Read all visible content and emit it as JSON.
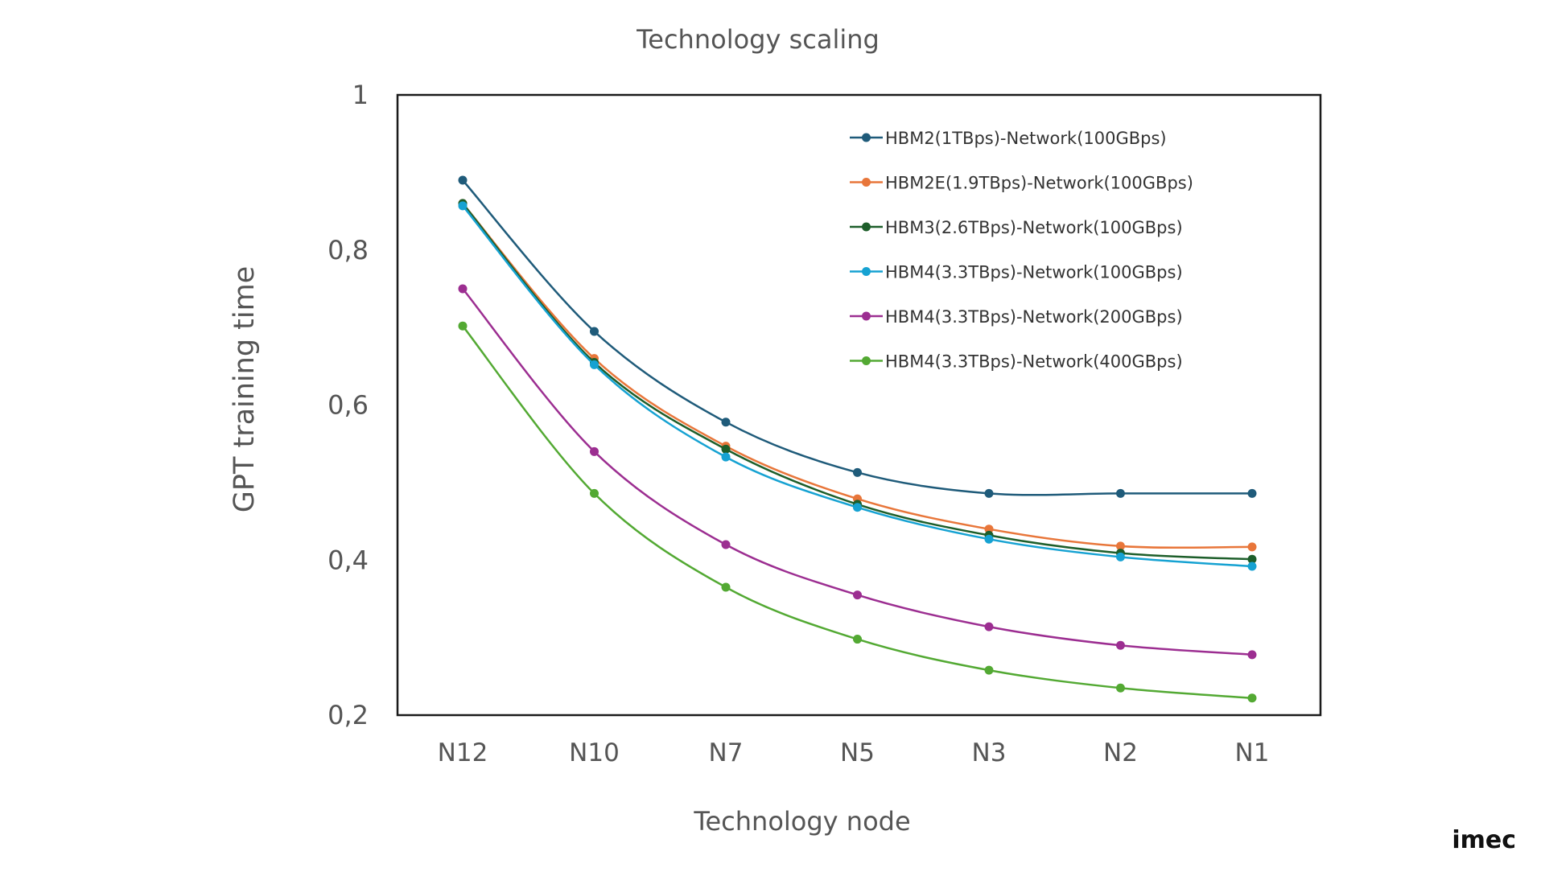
{
  "chart_data": {
    "type": "line",
    "title": "Technology scaling",
    "xlabel": "Technology node",
    "ylabel": "GPT training time",
    "categories": [
      "N12",
      "N10",
      "N7",
      "N5",
      "N3",
      "N2",
      "N1"
    ],
    "ylim": [
      0.2,
      1.0
    ],
    "yticks": [
      0.2,
      0.4,
      0.6,
      0.8,
      1.0
    ],
    "ytick_labels": [
      "0,2",
      "0,4",
      "0,6",
      "0,8",
      "1"
    ],
    "grid": false,
    "legend_position": "top-right",
    "series": [
      {
        "name": "HBM2(1TBps)-Network(100GBps)",
        "color": "#1f5b7a",
        "values": [
          0.89,
          0.695,
          0.578,
          0.513,
          0.486,
          0.486,
          0.486
        ]
      },
      {
        "name": "HBM2E(1.9TBps)-Network(100GBps)",
        "color": "#e8763a",
        "values": [
          0.86,
          0.66,
          0.547,
          0.479,
          0.44,
          0.418,
          0.417
        ]
      },
      {
        "name": "HBM3(2.6TBps)-Network(100GBps)",
        "color": "#1d5e2a",
        "values": [
          0.86,
          0.655,
          0.543,
          0.472,
          0.432,
          0.409,
          0.401
        ]
      },
      {
        "name": "HBM4(3.3TBps)-Network(100GBps)",
        "color": "#16a2d2",
        "values": [
          0.857,
          0.652,
          0.533,
          0.468,
          0.427,
          0.404,
          0.392
        ]
      },
      {
        "name": "HBM4(3.3TBps)-Network(200GBps)",
        "color": "#9c2e91",
        "values": [
          0.75,
          0.54,
          0.42,
          0.355,
          0.314,
          0.29,
          0.278
        ]
      },
      {
        "name": "HBM4(3.3TBps)-Network(400GBps)",
        "color": "#53a933",
        "values": [
          0.702,
          0.486,
          0.365,
          0.298,
          0.258,
          0.235,
          0.222
        ]
      }
    ]
  },
  "branding": {
    "logo_text": "imec"
  }
}
